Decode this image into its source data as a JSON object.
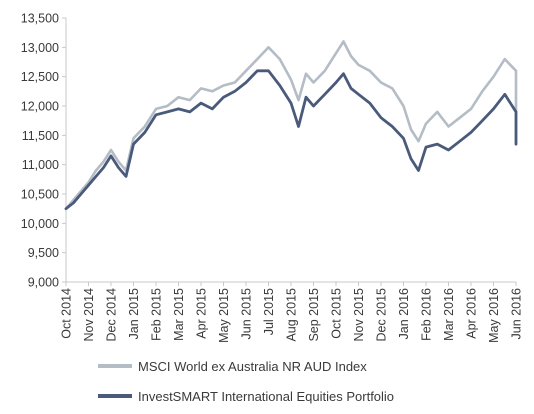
{
  "chart_data": {
    "type": "line",
    "ylim": [
      9000,
      13500
    ],
    "yticks": [
      "9,000",
      "9,500",
      "10,000",
      "10,500",
      "11,000",
      "11,500",
      "12,000",
      "12,500",
      "13,000",
      "13,500"
    ],
    "ytick_values": [
      9000,
      9500,
      10000,
      10500,
      11000,
      11500,
      12000,
      12500,
      13000,
      13500
    ],
    "categories": [
      "Oct 2014",
      "Nov 2014",
      "Dec 2014",
      "Jan 2015",
      "Feb 2015",
      "Mar 2015",
      "Apr 2015",
      "May 2015",
      "Jun 2015",
      "Jul 2015",
      "Aug 2015",
      "Sep 2015",
      "Oct 2015",
      "Nov 2015",
      "Dec 2015",
      "Jan 2016",
      "Feb 2016",
      "Mar 2016",
      "Apr 2016",
      "May 2016",
      "Jun 2016"
    ],
    "x": [
      "Oct 2014",
      "Oct 2014",
      "Oct 2014",
      "Nov 2014",
      "Nov 2014",
      "Nov 2014",
      "Dec 2014",
      "Dec 2014",
      "Dec 2014",
      "Jan 2015",
      "Jan 2015",
      "Feb 2015",
      "Feb 2015",
      "Mar 2015",
      "Mar 2015",
      "Apr 2015",
      "Apr 2015",
      "May 2015",
      "May 2015",
      "Jun 2015",
      "Jun 2015",
      "Jul 2015",
      "Jul 2015",
      "Aug 2015",
      "Aug 2015",
      "Aug 2015",
      "Sep 2015",
      "Sep 2015",
      "Oct 2015",
      "Oct 2015",
      "Oct 2015",
      "Nov 2015",
      "Nov 2015",
      "Dec 2015",
      "Dec 2015",
      "Jan 2016",
      "Jan 2016",
      "Jan 2016",
      "Feb 2016",
      "Feb 2016",
      "Mar 2016",
      "Mar 2016",
      "Apr 2016",
      "Apr 2016",
      "May 2016",
      "May 2016",
      "Jun 2016",
      "Jun 2016",
      "Jun 2016"
    ],
    "series": [
      {
        "name": "MSCI World ex Australia NR AUD Index",
        "color": "#b4bcc6",
        "values": [
          10250,
          10400,
          10550,
          10700,
          10900,
          11050,
          11250,
          11050,
          10900,
          11450,
          11650,
          11950,
          12000,
          12150,
          12100,
          12300,
          12250,
          12350,
          12400,
          12600,
          12800,
          13000,
          12800,
          12450,
          12100,
          12550,
          12400,
          12600,
          12900,
          13100,
          12850,
          12700,
          12600,
          12400,
          12300,
          12000,
          11600,
          11400,
          11700,
          11900,
          11650,
          11800,
          11950,
          12250,
          12500,
          12800,
          12600,
          11900,
          12150
        ]
      },
      {
        "name": "InvestSMART International Equities Portfolio",
        "color": "#4a5a7a",
        "values": [
          10250,
          10350,
          10500,
          10650,
          10800,
          10950,
          11150,
          10950,
          10800,
          11350,
          11550,
          11850,
          11900,
          11950,
          11900,
          12050,
          11950,
          12150,
          12250,
          12400,
          12600,
          12600,
          12350,
          12050,
          11650,
          12150,
          12000,
          12200,
          12400,
          12550,
          12300,
          12200,
          12050,
          11800,
          11650,
          11450,
          11100,
          10900,
          11300,
          11350,
          11250,
          11400,
          11550,
          11750,
          11950,
          12200,
          11900,
          11350,
          11600
        ]
      }
    ]
  },
  "legend": [
    {
      "label": "MSCI World ex Australia NR AUD Index",
      "color": "#b4bcc6"
    },
    {
      "label": "InvestSMART International Equities Portfolio",
      "color": "#4a5a7a"
    }
  ],
  "axis_color": "#c8c8c8"
}
